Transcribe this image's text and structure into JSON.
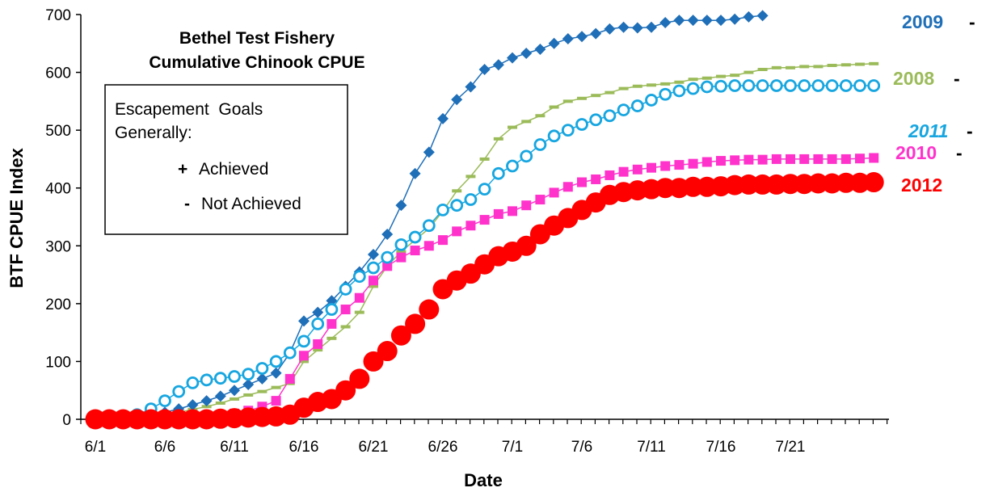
{
  "chart_data": {
    "type": "line",
    "title": "Bethel Test Fishery",
    "subtitle": "Cumulative Chinook CPUE",
    "xlabel": "Date",
    "ylabel": "BTF CPUE Index",
    "ylim": [
      0,
      700
    ],
    "yticks": [
      0,
      100,
      200,
      300,
      400,
      500,
      600,
      700
    ],
    "x_start_date": "6/1",
    "xticks": [
      "6/1",
      "6/6",
      "6/11",
      "6/16",
      "6/21",
      "6/26",
      "7/1",
      "7/6",
      "7/11",
      "7/16",
      "7/21"
    ],
    "grid": false,
    "legend_box": {
      "heading_line1": "Escapement  Goals",
      "heading_line2": "Generally:",
      "items": [
        {
          "symbol": "+",
          "text": "Achieved"
        },
        {
          "symbol": "-",
          "text": "Not Achieved"
        }
      ]
    },
    "series": [
      {
        "name": "2009",
        "label": "2009",
        "status_symbol": "-",
        "label_italic": false,
        "color": "#1f6fb8",
        "marker": "diamond",
        "values": [
          0,
          0,
          0,
          3,
          7,
          12,
          18,
          25,
          32,
          40,
          50,
          60,
          70,
          80,
          115,
          170,
          185,
          205,
          230,
          255,
          285,
          320,
          370,
          425,
          462,
          520,
          553,
          575,
          605,
          613,
          625,
          633,
          640,
          650,
          658,
          662,
          667,
          675,
          678,
          677,
          678,
          686,
          690,
          690,
          690,
          690,
          692,
          696,
          698
        ]
      },
      {
        "name": "2008",
        "label": "2008",
        "status_symbol": "-",
        "label_italic": false,
        "color": "#9bbb59",
        "marker": "dash",
        "values": [
          0,
          0,
          0,
          2,
          4,
          8,
          12,
          17,
          22,
          28,
          35,
          42,
          48,
          55,
          62,
          100,
          120,
          140,
          160,
          185,
          230,
          265,
          290,
          310,
          330,
          360,
          395,
          420,
          450,
          485,
          505,
          515,
          525,
          540,
          550,
          555,
          560,
          565,
          572,
          576,
          578,
          580,
          583,
          588,
          590,
          593,
          595,
          600,
          605,
          608,
          608,
          610,
          610,
          612,
          613,
          614,
          615
        ]
      },
      {
        "name": "2011",
        "label": "2011",
        "status_symbol": "-",
        "label_italic": true,
        "color": "#17a6e0",
        "marker": "open-circle",
        "values": [
          0,
          0,
          2,
          8,
          18,
          32,
          48,
          63,
          68,
          71,
          74,
          78,
          88,
          100,
          115,
          135,
          165,
          190,
          225,
          247,
          262,
          280,
          302,
          315,
          335,
          362,
          370,
          380,
          398,
          425,
          438,
          455,
          475,
          490,
          500,
          510,
          518,
          525,
          535,
          542,
          552,
          562,
          568,
          572,
          575,
          576,
          577,
          577,
          577,
          577,
          577,
          577,
          577,
          577,
          577,
          577,
          577
        ]
      },
      {
        "name": "2010",
        "label": "2010",
        "status_symbol": "-",
        "label_italic": false,
        "color": "#ff33cc",
        "marker": "square",
        "values": [
          0,
          0,
          0,
          0,
          1,
          2,
          3,
          4,
          5,
          7,
          10,
          15,
          22,
          32,
          70,
          110,
          130,
          165,
          190,
          210,
          240,
          265,
          280,
          292,
          300,
          310,
          325,
          335,
          345,
          355,
          360,
          370,
          380,
          392,
          402,
          410,
          415,
          422,
          428,
          432,
          435,
          438,
          440,
          442,
          445,
          447,
          448,
          449,
          449,
          450,
          450,
          450,
          450,
          450,
          450,
          451,
          452
        ]
      },
      {
        "name": "2012",
        "label": "2012",
        "status_symbol": "",
        "label_italic": false,
        "color": "#ff0000",
        "marker": "big-circle",
        "values": [
          0,
          0,
          0,
          0,
          0,
          0,
          0,
          0,
          0,
          1,
          2,
          3,
          4,
          5,
          8,
          20,
          30,
          35,
          50,
          70,
          100,
          118,
          145,
          165,
          190,
          225,
          240,
          252,
          268,
          282,
          290,
          300,
          320,
          335,
          348,
          362,
          375,
          388,
          393,
          396,
          398,
          400,
          400,
          402,
          402,
          403,
          405,
          406,
          406,
          406,
          407,
          407,
          408,
          408,
          409,
          409,
          410
        ]
      }
    ]
  }
}
